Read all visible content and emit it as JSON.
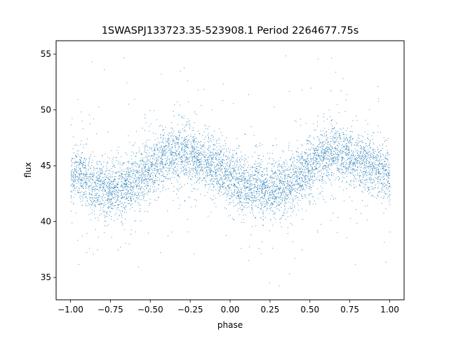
{
  "chart_data": {
    "type": "scatter",
    "title": "1SWASPJ133723.35-523908.1 Period 2264677.75s",
    "xlabel": "phase",
    "ylabel": "flux",
    "xlim": [
      -1.09,
      1.09
    ],
    "ylim": [
      33.0,
      56.2
    ],
    "xticks": [
      -1.0,
      -0.75,
      -0.5,
      -0.25,
      0.0,
      0.25,
      0.5,
      0.75,
      1.0
    ],
    "xtick_labels": [
      "−1.00",
      "−0.75",
      "−0.50",
      "−0.25",
      "0.00",
      "0.25",
      "0.50",
      "0.75",
      "1.00"
    ],
    "yticks": [
      35,
      40,
      45,
      50,
      55
    ],
    "ytick_labels": [
      "35",
      "40",
      "45",
      "50",
      "55"
    ],
    "grid": false,
    "legend": "none",
    "marker_color": "#1f77b4",
    "profile": {
      "phase": [
        -1.0,
        -0.95,
        -0.9,
        -0.85,
        -0.75,
        -0.65,
        -0.55,
        -0.5,
        -0.45,
        -0.35,
        -0.25,
        -0.15,
        -0.05,
        0.0,
        0.05,
        0.15,
        0.25,
        0.35,
        0.45,
        0.5,
        0.55,
        0.65,
        0.75,
        0.85,
        0.95,
        1.0
      ],
      "median_flux": [
        43.8,
        44.5,
        43.5,
        43.2,
        42.8,
        43.3,
        44.2,
        44.6,
        45.6,
        46.2,
        45.8,
        45.3,
        44.6,
        43.8,
        43.5,
        43.2,
        42.8,
        43.3,
        44.2,
        44.6,
        45.6,
        46.2,
        45.8,
        45.3,
        44.6,
        43.8
      ]
    }
  }
}
